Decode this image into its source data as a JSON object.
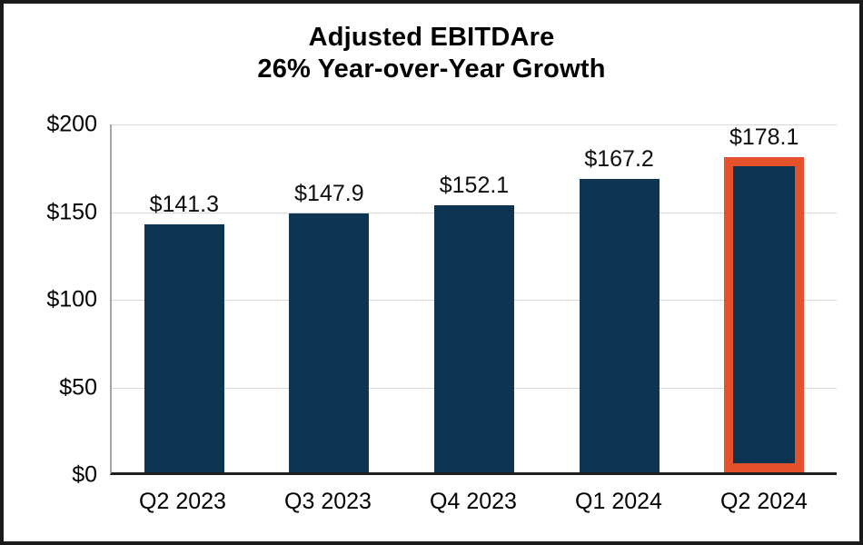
{
  "chart_data": {
    "type": "bar",
    "title_line1": "Adjusted EBITDAre",
    "title_line2": "26% Year-over-Year Growth",
    "categories": [
      "Q2 2023",
      "Q3 2023",
      "Q4 2023",
      "Q1 2024",
      "Q2 2024"
    ],
    "values": [
      141.3,
      147.9,
      152.1,
      167.2,
      178.1
    ],
    "data_labels": [
      "$141.3",
      "$147.9",
      "$152.1",
      "$167.2",
      "$178.1"
    ],
    "highlighted_index": 4,
    "y_ticks": [
      {
        "label": "$0",
        "value": 0
      },
      {
        "label": "$50",
        "value": 50
      },
      {
        "label": "$100",
        "value": 100
      },
      {
        "label": "$150",
        "value": 150
      },
      {
        "label": "$200",
        "value": 200
      }
    ],
    "ylim": [
      0,
      200
    ],
    "grid": true,
    "legend": null,
    "colors": {
      "bar": "#0d3450",
      "highlight_border": "#e5512d",
      "gridline": "#d9d9d9",
      "x_axis_line": "#1f1f1f",
      "y_axis_line": "#a6a6a6",
      "text": "#000000",
      "frame_border": "#1a1a1a"
    }
  }
}
